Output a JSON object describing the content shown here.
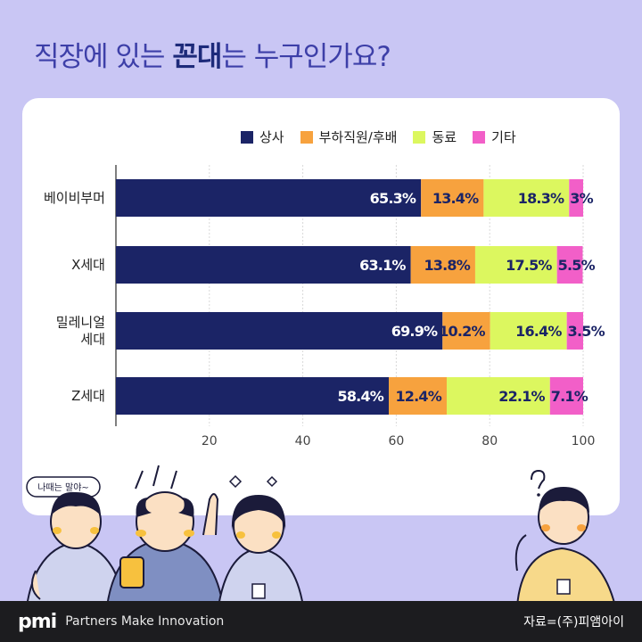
{
  "title": {
    "pre": "직장에 있는 ",
    "strong": "꼰대",
    "post": "는 누구인가요?"
  },
  "chart_data": {
    "type": "bar",
    "orientation": "horizontal",
    "stacked": true,
    "categories": [
      [
        "베이비부머"
      ],
      [
        "X세대"
      ],
      [
        "밀레니얼",
        "세대"
      ],
      [
        "Z세대"
      ]
    ],
    "series": [
      {
        "name": "상사",
        "color": "#1b2466",
        "values": [
          65.3,
          63.1,
          69.9,
          58.4
        ],
        "labels": [
          "65.3%",
          "63.1%",
          "69.9%",
          "58.4%"
        ]
      },
      {
        "name": "부하직원/후배",
        "color": "#f7a23e",
        "values": [
          13.4,
          13.8,
          10.2,
          12.4
        ],
        "labels": [
          "13.4%",
          "13.8%",
          "10.2%",
          "12.4%"
        ]
      },
      {
        "name": "동료",
        "color": "#dcf75f",
        "values": [
          18.3,
          17.5,
          16.4,
          22.1
        ],
        "labels": [
          "18.3%",
          "17.5%",
          "16.4%",
          "22.1%"
        ]
      },
      {
        "name": "기타",
        "color": "#f25fc8",
        "values": [
          3,
          5.5,
          3.5,
          7.1
        ],
        "labels": [
          "3%",
          "5.5%",
          "3.5%",
          "7.1%"
        ]
      }
    ],
    "x_ticks": [
      "20",
      "40",
      "60",
      "80",
      "100"
    ],
    "xlim": [
      0,
      100
    ],
    "grid": true,
    "legend": "top"
  },
  "illustration": {
    "speech_bubble": "나때는 말야~"
  },
  "footer": {
    "logo": "pmi",
    "tagline": "Partners Make Innovation",
    "source": "자료=(주)피앰아이"
  }
}
